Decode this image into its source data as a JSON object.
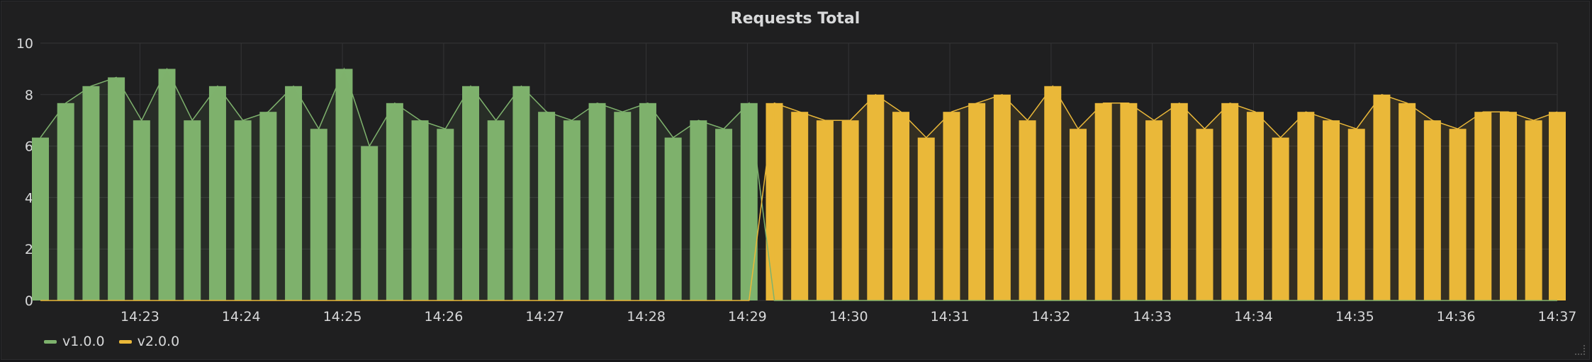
{
  "panel": {
    "title": "Requests Total"
  },
  "legend": [
    {
      "name": "v1.0.0",
      "color": "#7eb26d"
    },
    {
      "name": "v2.0.0",
      "color": "#eab839"
    }
  ],
  "chart_data": {
    "type": "bar",
    "title": "Requests Total",
    "xlabel": "",
    "ylabel": "",
    "ylim": [
      0,
      10
    ],
    "yticks": [
      0,
      2,
      4,
      6,
      8,
      10
    ],
    "xticks": [
      "14:23",
      "14:24",
      "14:25",
      "14:26",
      "14:27",
      "14:28",
      "14:29",
      "14:30",
      "14:31",
      "14:32",
      "14:33",
      "14:34",
      "14:35",
      "14:36",
      "14:37"
    ],
    "x_start": "14:22:01",
    "x_end": "14:37:00",
    "grid": true,
    "legend_position": "bottom-left",
    "series": [
      {
        "name": "v1.0.0",
        "color": "#7eb26d",
        "times": [
          "14:22:01",
          "14:22:16",
          "14:22:31",
          "14:22:46",
          "14:23:01",
          "14:23:16",
          "14:23:31",
          "14:23:46",
          "14:24:01",
          "14:24:16",
          "14:24:31",
          "14:24:46",
          "14:25:01",
          "14:25:16",
          "14:25:31",
          "14:25:46",
          "14:26:01",
          "14:26:16",
          "14:26:31",
          "14:26:46",
          "14:27:01",
          "14:27:16",
          "14:27:31",
          "14:27:46",
          "14:28:01",
          "14:28:16",
          "14:28:31",
          "14:28:46",
          "14:29:01"
        ],
        "values": [
          6.33,
          7.67,
          8.33,
          8.67,
          7.0,
          9.0,
          7.0,
          8.33,
          7.0,
          7.33,
          8.33,
          6.67,
          9.0,
          6.0,
          7.67,
          7.0,
          6.67,
          8.33,
          7.0,
          8.33,
          7.33,
          7.0,
          7.67,
          7.33,
          7.67,
          6.33,
          7.0,
          6.67,
          7.67
        ]
      },
      {
        "name": "v2.0.0",
        "color": "#eab839",
        "times": [
          "14:29:16",
          "14:29:31",
          "14:29:46",
          "14:30:01",
          "14:30:16",
          "14:30:31",
          "14:30:46",
          "14:31:01",
          "14:31:16",
          "14:31:31",
          "14:31:46",
          "14:32:01",
          "14:32:16",
          "14:32:31",
          "14:32:46",
          "14:33:01",
          "14:33:16",
          "14:33:31",
          "14:33:46",
          "14:34:01",
          "14:34:16",
          "14:34:31",
          "14:34:46",
          "14:35:01",
          "14:35:16",
          "14:35:31",
          "14:35:46",
          "14:36:01",
          "14:36:16",
          "14:36:31",
          "14:36:46",
          "14:37:00"
        ],
        "values": [
          7.67,
          7.33,
          7.0,
          7.0,
          8.0,
          7.33,
          6.33,
          7.33,
          7.67,
          8.0,
          7.0,
          8.33,
          6.67,
          7.67,
          7.67,
          7.0,
          7.67,
          6.67,
          7.67,
          7.33,
          6.33,
          7.33,
          7.0,
          6.67,
          8.0,
          7.67,
          7.0,
          6.67,
          7.33,
          7.33,
          7.0,
          7.33
        ]
      }
    ]
  }
}
